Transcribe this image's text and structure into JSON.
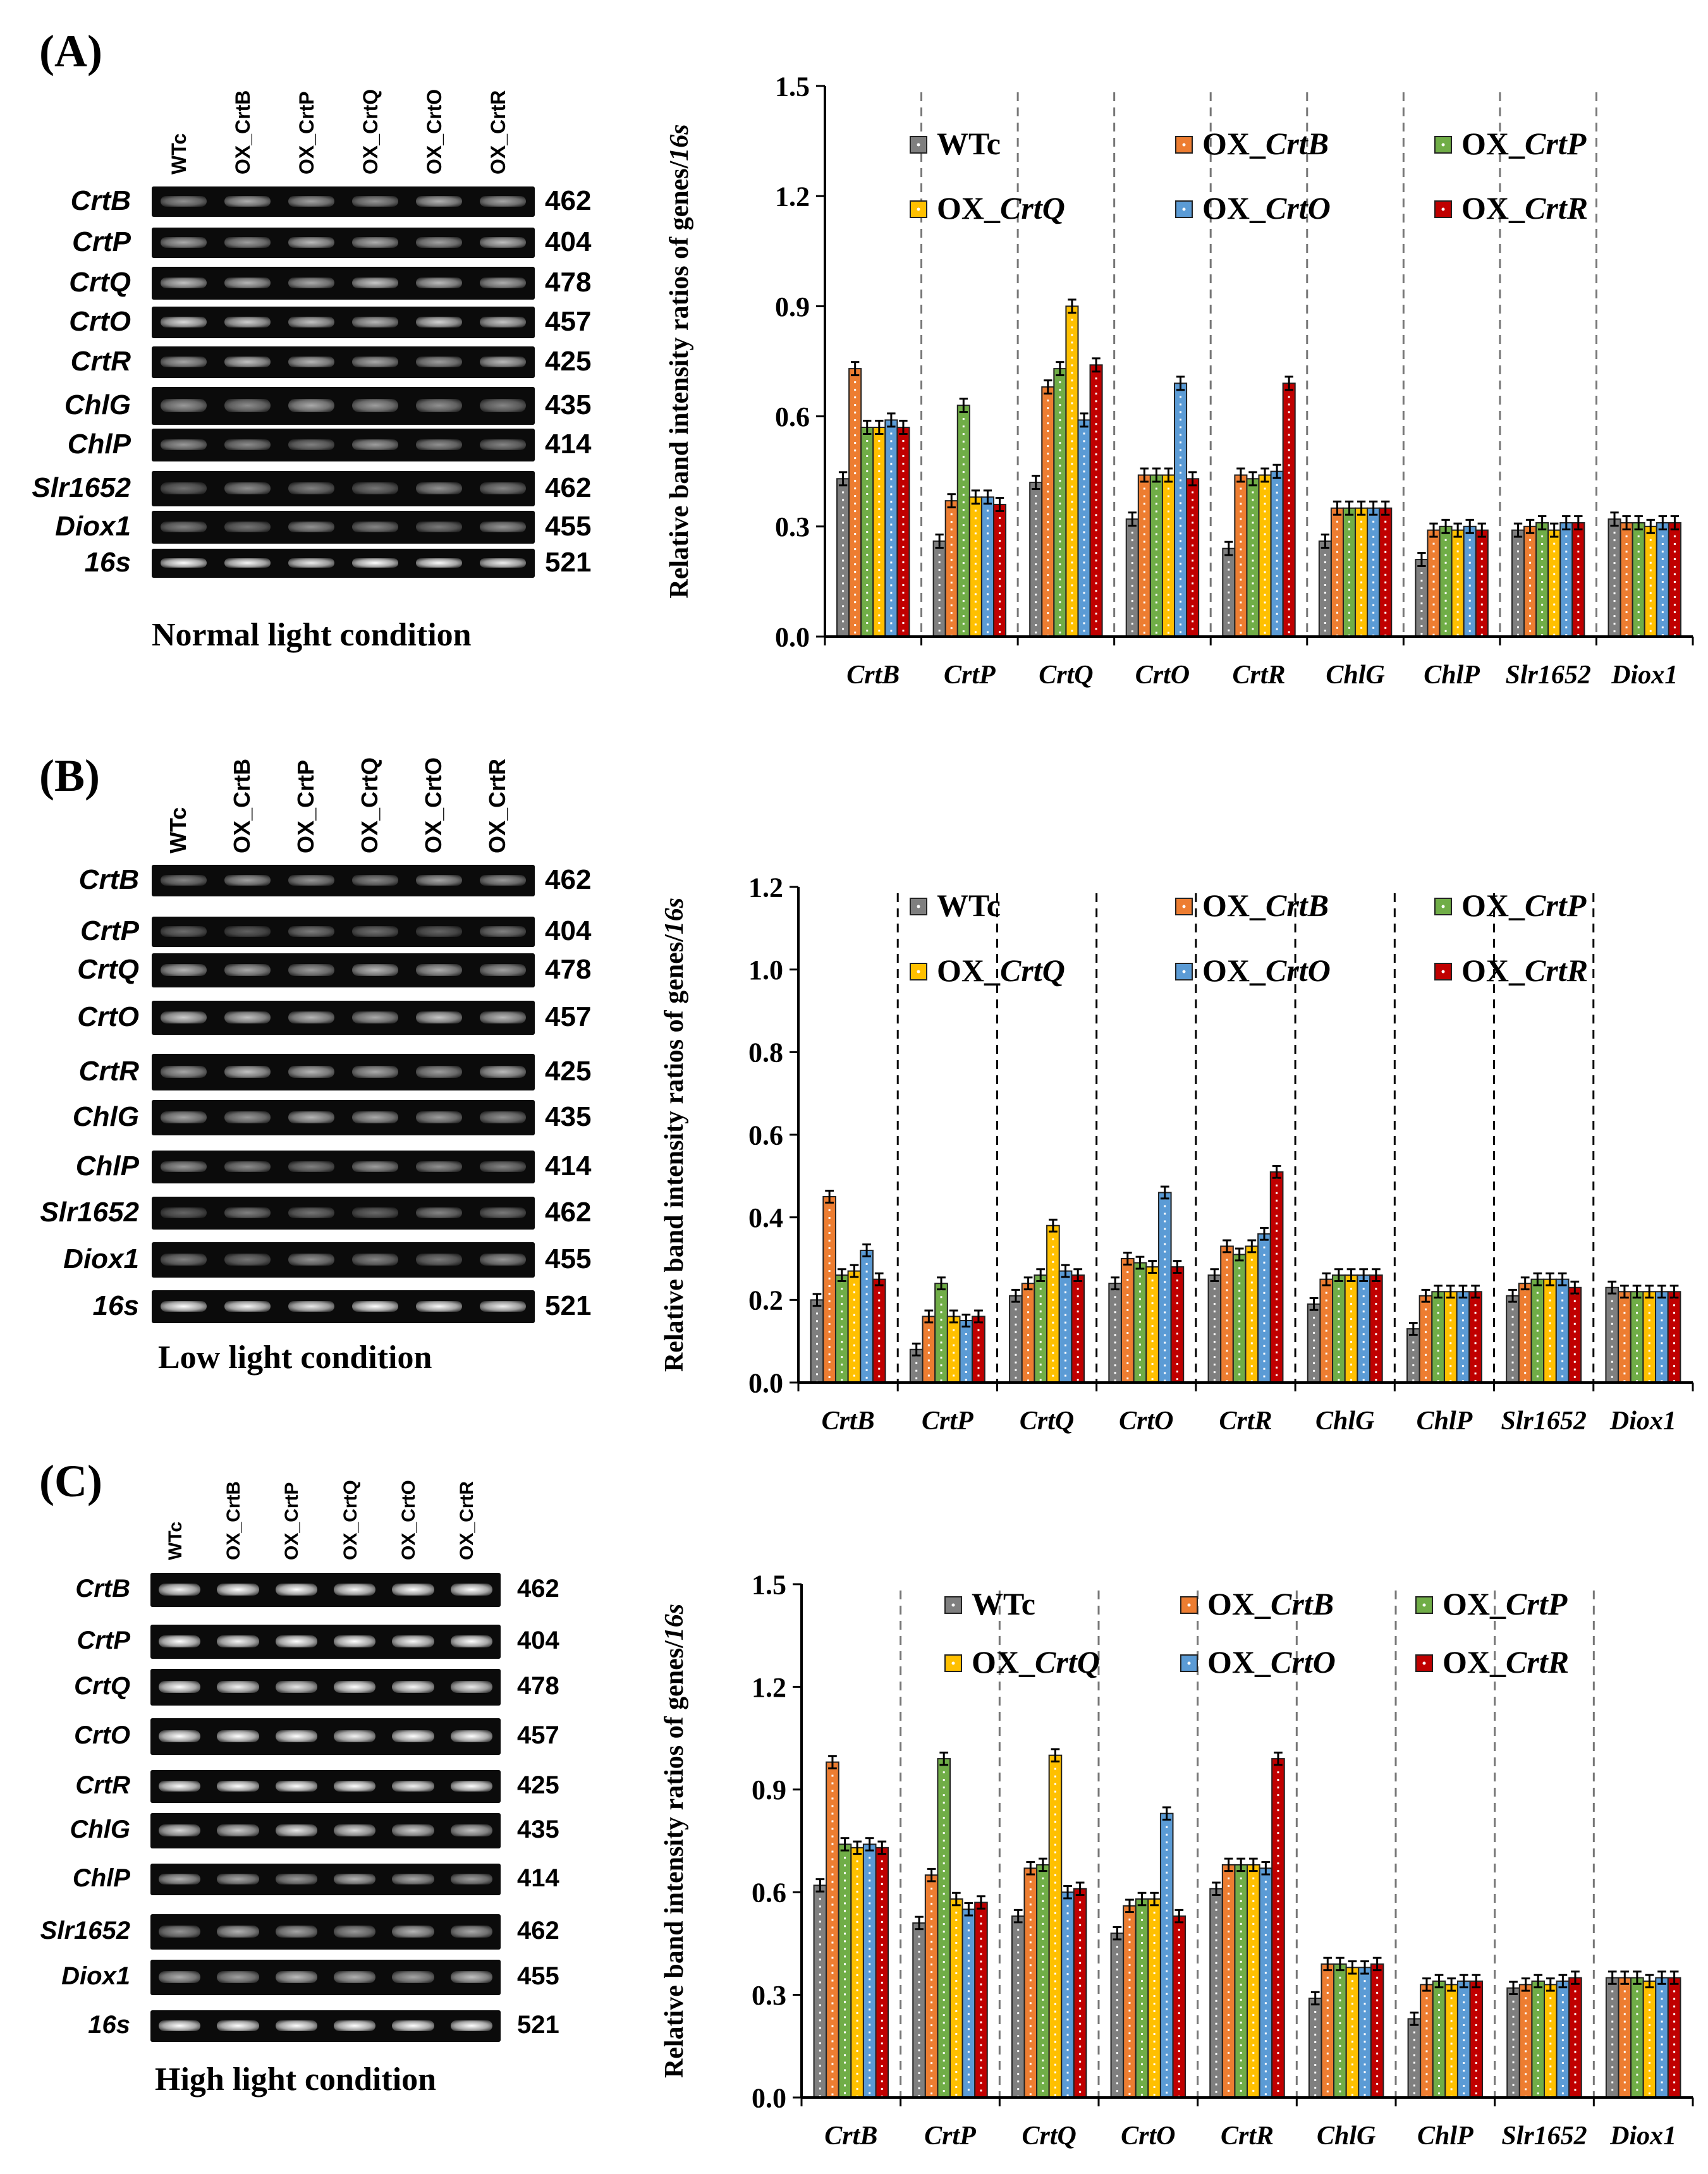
{
  "chart_data": [
    {
      "type": "bar",
      "panel_label": "(A)",
      "condition": "Normal light condition",
      "ylabel_prefix": "Relative band intensity ratios of genes/",
      "ylabel_italic": "16s",
      "ylim": [
        0,
        1.5
      ],
      "yticks": [
        "0.0",
        "0.3",
        "0.6",
        "0.9",
        "1.2",
        "1.5"
      ],
      "categories": [
        "CrtB",
        "CrtP",
        "CrtQ",
        "CrtO",
        "CrtR",
        "ChlG",
        "ChlP",
        "Slr1652",
        "Diox1"
      ],
      "series": [
        {
          "name": "WTc",
          "prefix": "",
          "italic": "WTc",
          "color": "#7f7f7f",
          "values": [
            0.43,
            0.26,
            0.42,
            0.32,
            0.24,
            0.26,
            0.21,
            0.29,
            0.32
          ]
        },
        {
          "name": "OX_CrtB",
          "prefix": "OX_",
          "italic": "CrtB",
          "color": "#ed7d31",
          "values": [
            0.73,
            0.37,
            0.68,
            0.44,
            0.44,
            0.35,
            0.29,
            0.3,
            0.31
          ]
        },
        {
          "name": "OX_CrtP",
          "prefix": "OX_",
          "italic": "CrtP",
          "color": "#70ad47",
          "values": [
            0.57,
            0.63,
            0.73,
            0.44,
            0.43,
            0.35,
            0.3,
            0.31,
            0.31
          ]
        },
        {
          "name": "OX_CrtQ",
          "prefix": "OX_",
          "italic": "CrtQ",
          "color": "#ffc000",
          "values": [
            0.57,
            0.38,
            0.9,
            0.44,
            0.44,
            0.35,
            0.29,
            0.29,
            0.3
          ]
        },
        {
          "name": "OX_CrtO",
          "prefix": "OX_",
          "italic": "CrtO",
          "color": "#5b9bd5",
          "values": [
            0.59,
            0.38,
            0.59,
            0.69,
            0.45,
            0.35,
            0.3,
            0.31,
            0.31
          ]
        },
        {
          "name": "OX_CrtR",
          "prefix": "OX_",
          "italic": "CrtR",
          "color": "#c00000",
          "values": [
            0.57,
            0.36,
            0.74,
            0.43,
            0.69,
            0.35,
            0.29,
            0.31,
            0.31
          ]
        }
      ],
      "gel": {
        "lanes": [
          "WTc",
          "OX_CrtB",
          "OX_CrtP",
          "OX_CrtQ",
          "OX_CrtO",
          "OX_CrtR"
        ],
        "genes": [
          "CrtB",
          "CrtP",
          "CrtQ",
          "CrtO",
          "CrtR",
          "ChlG",
          "ChlP",
          "Slr1652",
          "Diox1",
          "16s"
        ],
        "sizes": [
          "462",
          "404",
          "478",
          "457",
          "425",
          "435",
          "414",
          "462",
          "455",
          "521"
        ]
      }
    },
    {
      "type": "bar",
      "panel_label": "(B)",
      "condition": "Low light condition",
      "ylabel_prefix": "Relative band intensity ratios of genes/",
      "ylabel_italic": "16s",
      "ylim": [
        0,
        1.2
      ],
      "yticks": [
        "0.0",
        "0.2",
        "0.4",
        "0.6",
        "0.8",
        "1.0",
        "1.2"
      ],
      "categories": [
        "CrtB",
        "CrtP",
        "CrtQ",
        "CrtO",
        "CrtR",
        "ChlG",
        "ChlP",
        "Slr1652",
        "Diox1"
      ],
      "series": [
        {
          "name": "WTc",
          "prefix": "",
          "italic": "WTc",
          "color": "#7f7f7f",
          "values": [
            0.2,
            0.08,
            0.21,
            0.24,
            0.26,
            0.19,
            0.13,
            0.21,
            0.23
          ]
        },
        {
          "name": "OX_CrtB",
          "prefix": "OX_",
          "italic": "CrtB",
          "color": "#ed7d31",
          "values": [
            0.45,
            0.16,
            0.24,
            0.3,
            0.33,
            0.25,
            0.21,
            0.24,
            0.22
          ]
        },
        {
          "name": "OX_CrtP",
          "prefix": "OX_",
          "italic": "CrtP",
          "color": "#70ad47",
          "values": [
            0.26,
            0.24,
            0.26,
            0.29,
            0.31,
            0.26,
            0.22,
            0.25,
            0.22
          ]
        },
        {
          "name": "OX_CrtQ",
          "prefix": "OX_",
          "italic": "CrtQ",
          "color": "#ffc000",
          "values": [
            0.27,
            0.16,
            0.38,
            0.28,
            0.33,
            0.26,
            0.22,
            0.25,
            0.22
          ]
        },
        {
          "name": "OX_CrtO",
          "prefix": "OX_",
          "italic": "CrtO",
          "color": "#5b9bd5",
          "values": [
            0.32,
            0.15,
            0.27,
            0.46,
            0.36,
            0.26,
            0.22,
            0.25,
            0.22
          ]
        },
        {
          "name": "OX_CrtR",
          "prefix": "OX_",
          "italic": "CrtR",
          "color": "#c00000",
          "values": [
            0.25,
            0.16,
            0.26,
            0.28,
            0.51,
            0.26,
            0.22,
            0.23,
            0.22
          ]
        }
      ],
      "gel": {
        "lanes": [
          "WTc",
          "OX_CrtB",
          "OX_CrtP",
          "OX_CrtQ",
          "OX_CrtO",
          "OX_CrtR"
        ],
        "genes": [
          "CrtB",
          "CrtP",
          "CrtQ",
          "CrtO",
          "CrtR",
          "ChlG",
          "ChlP",
          "Slr1652",
          "Diox1",
          "16s"
        ],
        "sizes": [
          "462",
          "404",
          "478",
          "457",
          "425",
          "435",
          "414",
          "462",
          "455",
          "521"
        ]
      }
    },
    {
      "type": "bar",
      "panel_label": "(C)",
      "condition": "High light condition",
      "ylabel_prefix": "Relative band intensity ratios of genes/",
      "ylabel_italic": "16s",
      "ylim": [
        0,
        1.5
      ],
      "yticks": [
        "0.0",
        "0.3",
        "0.6",
        "0.9",
        "1.2",
        "1.5"
      ],
      "categories": [
        "CrtB",
        "CrtP",
        "CrtQ",
        "CrtO",
        "CrtR",
        "ChlG",
        "ChlP",
        "Slr1652",
        "Diox1"
      ],
      "series": [
        {
          "name": "WTc",
          "prefix": "",
          "italic": "WTc",
          "color": "#7f7f7f",
          "values": [
            0.62,
            0.51,
            0.53,
            0.48,
            0.61,
            0.29,
            0.23,
            0.32,
            0.35
          ]
        },
        {
          "name": "OX_CrtB",
          "prefix": "OX_",
          "italic": "CrtB",
          "color": "#ed7d31",
          "values": [
            0.98,
            0.65,
            0.67,
            0.56,
            0.68,
            0.39,
            0.33,
            0.33,
            0.35
          ]
        },
        {
          "name": "OX_CrtP",
          "prefix": "OX_",
          "italic": "CrtP",
          "color": "#70ad47",
          "values": [
            0.74,
            0.99,
            0.68,
            0.58,
            0.68,
            0.39,
            0.34,
            0.34,
            0.35
          ]
        },
        {
          "name": "OX_CrtQ",
          "prefix": "OX_",
          "italic": "CrtQ",
          "color": "#ffc000",
          "values": [
            0.73,
            0.58,
            1.0,
            0.58,
            0.68,
            0.38,
            0.33,
            0.33,
            0.34
          ]
        },
        {
          "name": "OX_CrtO",
          "prefix": "OX_",
          "italic": "CrtO",
          "color": "#5b9bd5",
          "values": [
            0.74,
            0.55,
            0.6,
            0.83,
            0.67,
            0.38,
            0.34,
            0.34,
            0.35
          ]
        },
        {
          "name": "OX_CrtR",
          "prefix": "OX_",
          "italic": "CrtR",
          "color": "#c00000",
          "values": [
            0.73,
            0.57,
            0.61,
            0.53,
            0.99,
            0.39,
            0.34,
            0.35,
            0.35
          ]
        }
      ],
      "gel": {
        "lanes": [
          "WTc",
          "OX_CrtB",
          "OX_CrtP",
          "OX_CrtQ",
          "OX_CrtO",
          "OX_CrtR"
        ],
        "genes": [
          "CrtB",
          "CrtP",
          "CrtQ",
          "CrtO",
          "CrtR",
          "ChlG",
          "ChlP",
          "Slr1652",
          "Diox1",
          "16s"
        ],
        "sizes": [
          "462",
          "404",
          "478",
          "457",
          "425",
          "435",
          "414",
          "462",
          "455",
          "521"
        ]
      }
    }
  ]
}
